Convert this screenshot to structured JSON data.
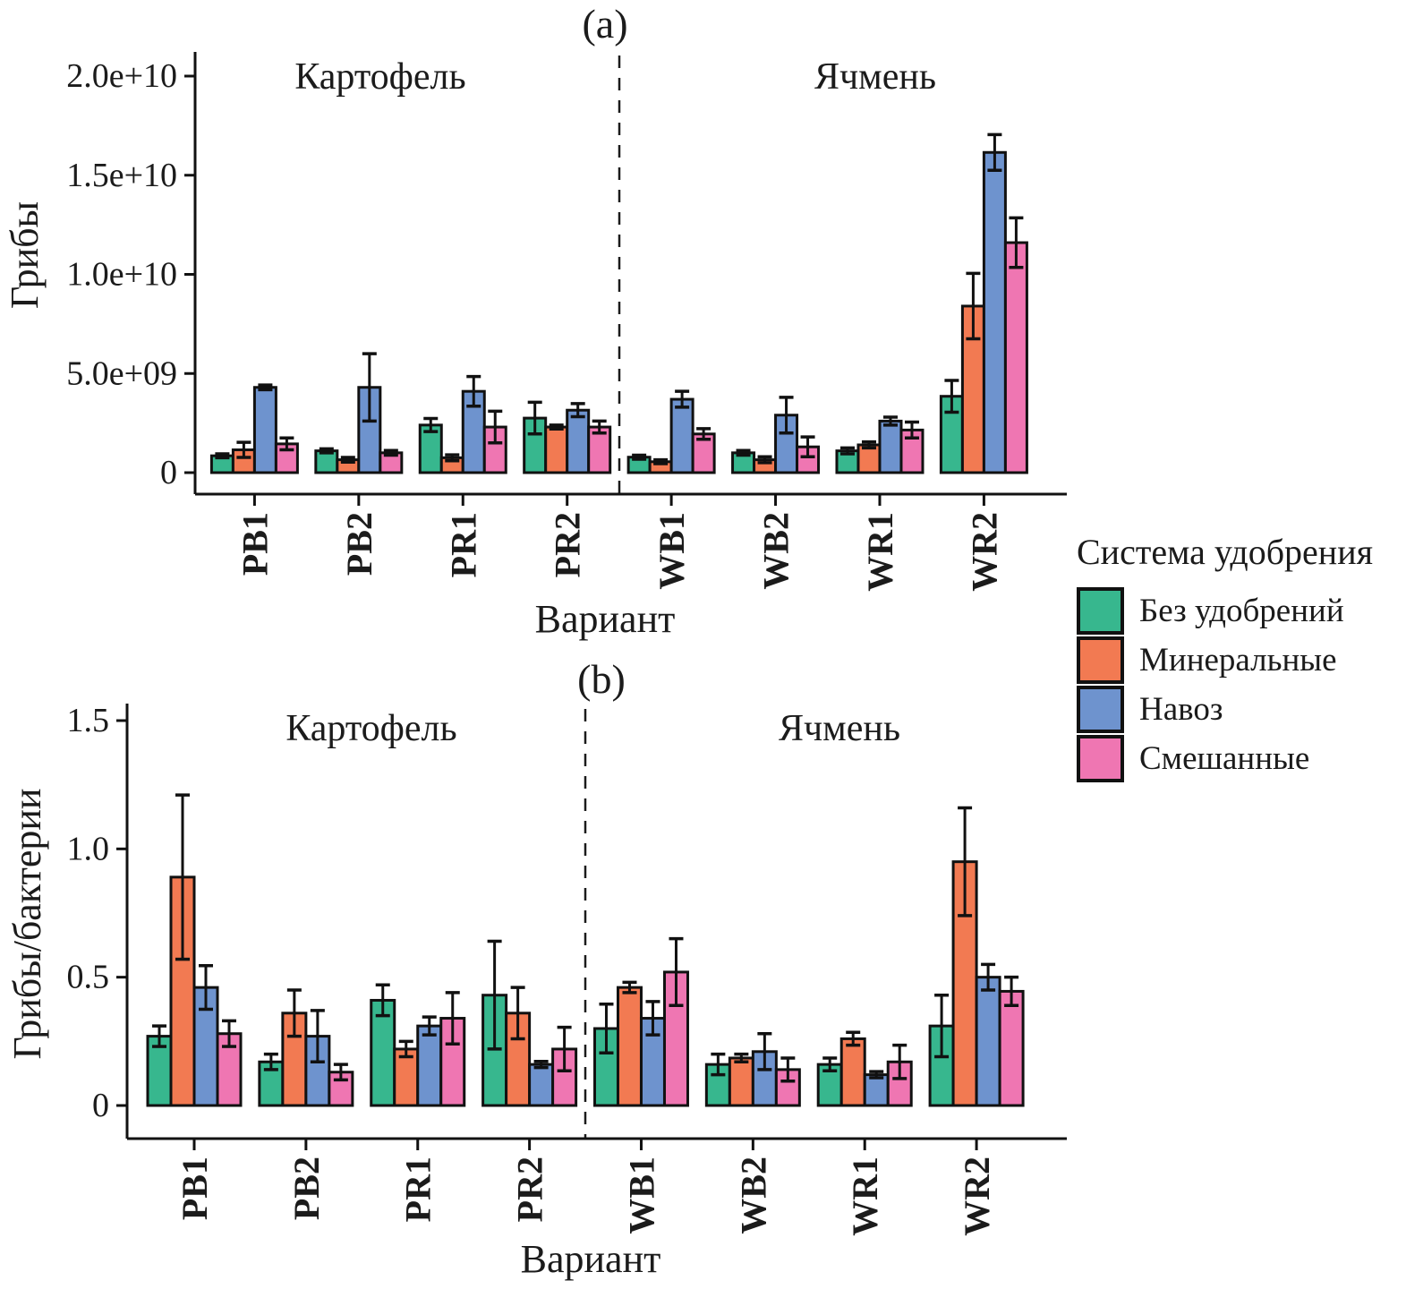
{
  "palette": {
    "green": "#37B78E",
    "orange": "#F27A52",
    "blue": "#6E93CE",
    "pink": "#EF76B2",
    "outline": "#111111",
    "text": "#1B1B1B"
  },
  "legend": {
    "title": "Система удобрения",
    "items": [
      {
        "label": "Без удобрений",
        "color_ref": "green"
      },
      {
        "label": "Минеральные",
        "color_ref": "orange"
      },
      {
        "label": "Навоз",
        "color_ref": "blue"
      },
      {
        "label": "Смешанные",
        "color_ref": "pink"
      }
    ]
  },
  "chart_data": [
    {
      "id": "a",
      "type": "bar",
      "title": "(a)",
      "xlabel": "Вариант",
      "ylabel": "Грибы",
      "categories": [
        "PB1",
        "PB2",
        "PR1",
        "PR2",
        "WB1",
        "WB2",
        "WR1",
        "WR2"
      ],
      "sections": [
        {
          "label": "Картофель",
          "categories": [
            "PB1",
            "PB2",
            "PR1",
            "PR2"
          ]
        },
        {
          "label": "Ячмень",
          "categories": [
            "WB1",
            "WB2",
            "WR1",
            "WR2"
          ]
        }
      ],
      "separator_between": [
        "PR2",
        "WB1"
      ],
      "ylim": [
        0,
        21200000000.0
      ],
      "grid": false,
      "yticks": [
        {
          "value": 0,
          "label": "0"
        },
        {
          "value": 5000000000.0,
          "label": "5.0e+09"
        },
        {
          "value": 10000000000.0,
          "label": "1.0e+10"
        },
        {
          "value": 15000000000.0,
          "label": "1.5e+10"
        },
        {
          "value": 20000000000.0,
          "label": "2.0e+10"
        }
      ],
      "series": [
        {
          "name": "Без удобрений",
          "color_ref": "green",
          "values": [
            850000000.0,
            1100000000.0,
            2400000000.0,
            2750000000.0,
            780000000.0,
            1000000000.0,
            1100000000.0,
            3850000000.0
          ],
          "errors": [
            100000000.0,
            100000000.0,
            330000000.0,
            800000000.0,
            100000000.0,
            120000000.0,
            150000000.0,
            800000000.0
          ]
        },
        {
          "name": "Минеральные",
          "color_ref": "orange",
          "values": [
            1150000000.0,
            650000000.0,
            750000000.0,
            2300000000.0,
            550000000.0,
            650000000.0,
            1400000000.0,
            8400000000.0
          ],
          "errors": [
            380000000.0,
            120000000.0,
            150000000.0,
            100000000.0,
            100000000.0,
            150000000.0,
            150000000.0,
            1650000000.0
          ]
        },
        {
          "name": "Навоз",
          "color_ref": "blue",
          "values": [
            4300000000.0,
            4300000000.0,
            4100000000.0,
            3150000000.0,
            3700000000.0,
            2900000000.0,
            2600000000.0,
            16150000000.0
          ],
          "errors": [
            120000000.0,
            1700000000.0,
            750000000.0,
            330000000.0,
            400000000.0,
            900000000.0,
            200000000.0,
            900000000.0
          ]
        },
        {
          "name": "Смешанные",
          "color_ref": "pink",
          "values": [
            1450000000.0,
            1000000000.0,
            2300000000.0,
            2300000000.0,
            1950000000.0,
            1300000000.0,
            2150000000.0,
            11600000000.0
          ],
          "errors": [
            300000000.0,
            120000000.0,
            800000000.0,
            300000000.0,
            270000000.0,
            500000000.0,
            400000000.0,
            1250000000.0
          ]
        }
      ]
    },
    {
      "id": "b",
      "type": "bar",
      "title": "(b)",
      "xlabel": "Вариант",
      "ylabel": "Грибы/бактерии",
      "categories": [
        "PB1",
        "PB2",
        "PR1",
        "PR2",
        "WB1",
        "WB2",
        "WR1",
        "WR2"
      ],
      "sections": [
        {
          "label": "Картофель",
          "categories": [
            "PB1",
            "PB2",
            "PR1",
            "PR2"
          ]
        },
        {
          "label": "Ячмень",
          "categories": [
            "WB1",
            "WB2",
            "WR1",
            "WR2"
          ]
        }
      ],
      "separator_between": [
        "PR2",
        "WB1"
      ],
      "ylim": [
        0,
        1.56
      ],
      "grid": false,
      "yticks": [
        {
          "value": 0,
          "label": "0"
        },
        {
          "value": 0.5,
          "label": "0.5"
        },
        {
          "value": 1.0,
          "label": "1.0"
        },
        {
          "value": 1.5,
          "label": "1.5"
        }
      ],
      "series": [
        {
          "name": "Без удобрений",
          "color_ref": "green",
          "values": [
            0.27,
            0.17,
            0.41,
            0.43,
            0.3,
            0.16,
            0.16,
            0.31
          ],
          "errors": [
            0.04,
            0.03,
            0.06,
            0.21,
            0.095,
            0.04,
            0.025,
            0.12
          ]
        },
        {
          "name": "Минеральные",
          "color_ref": "orange",
          "values": [
            0.89,
            0.36,
            0.22,
            0.36,
            0.46,
            0.185,
            0.26,
            0.95
          ],
          "errors": [
            0.32,
            0.09,
            0.03,
            0.1,
            0.02,
            0.015,
            0.025,
            0.21
          ]
        },
        {
          "name": "Навоз",
          "color_ref": "blue",
          "values": [
            0.46,
            0.27,
            0.31,
            0.16,
            0.34,
            0.21,
            0.12,
            0.5
          ],
          "errors": [
            0.085,
            0.1,
            0.035,
            0.012,
            0.065,
            0.07,
            0.012,
            0.05
          ]
        },
        {
          "name": "Смешанные",
          "color_ref": "pink",
          "values": [
            0.28,
            0.13,
            0.34,
            0.22,
            0.52,
            0.14,
            0.17,
            0.445
          ],
          "errors": [
            0.05,
            0.03,
            0.1,
            0.085,
            0.13,
            0.045,
            0.065,
            0.055
          ]
        }
      ]
    }
  ]
}
